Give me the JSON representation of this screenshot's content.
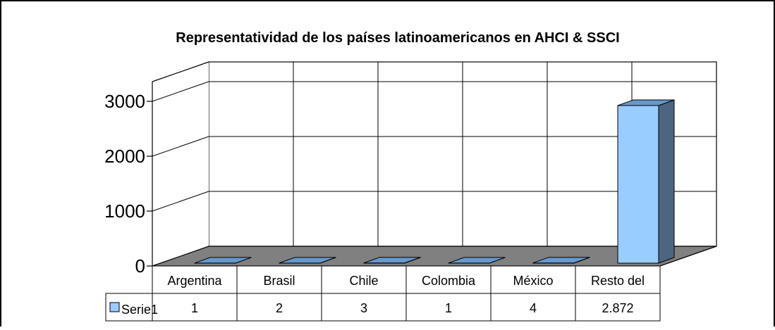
{
  "chart_data": {
    "type": "bar",
    "title": "Representatividad de los países latinoamericanos en AHCI & SSCI",
    "categories": [
      "Argentina",
      "Brasil",
      "Chile",
      "Colombia",
      "México",
      "Resto del"
    ],
    "series": [
      {
        "name": "Serie1",
        "values": [
          1,
          2,
          3,
          1,
          4,
          2872
        ],
        "value_labels": [
          "1",
          "2",
          "3",
          "1",
          "4",
          "2.872"
        ],
        "color": "#99ccff",
        "top_color": "#6699cc",
        "side_color": "#4d6580"
      }
    ],
    "y_ticks": [
      "0",
      "1000",
      "2000",
      "3000"
    ],
    "ylim": [
      0,
      3000
    ],
    "xlabel": "",
    "ylabel": "",
    "grid": true,
    "legend": "data-table",
    "three_d": true,
    "floor_color": "#808080"
  }
}
